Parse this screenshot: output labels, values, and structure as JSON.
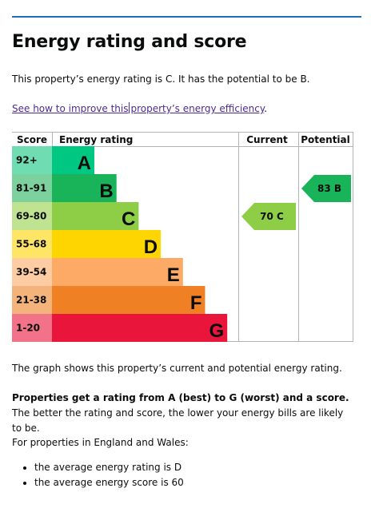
{
  "page": {
    "title": "Energy rating and score",
    "summary": "This property’s energy rating is C. It has the potential to be B.",
    "link_before": "See how to improve this",
    "link_after": "property’s energy efficiency",
    "link_end": ".",
    "graph_caption": "The graph shows this property’s current and potential energy rating.",
    "scale_bold": "Properties get a rating from A (best) to G (worst) and a score.",
    "scale_rest": " The better the rating and score, the lower your energy bills are likely to be.",
    "region_intro": "For properties in England and Wales:",
    "bullets": [
      "the average energy rating is D",
      "the average energy score is 60"
    ]
  },
  "chart_data": {
    "type": "bar",
    "headers": {
      "score": "Score",
      "rating": "Energy rating",
      "current": "Current",
      "potential": "Potential"
    },
    "bands": [
      {
        "letter": "A",
        "score": "92+",
        "color": "#00c781",
        "score_bg": "#6fdcb2"
      },
      {
        "letter": "B",
        "score": "81-91",
        "color": "#19b459",
        "score_bg": "#7dd19f"
      },
      {
        "letter": "C",
        "score": "69-80",
        "color": "#8dce46",
        "score_bg": "#bfe391"
      },
      {
        "letter": "D",
        "score": "55-68",
        "color": "#ffd500",
        "score_bg": "#ffe566"
      },
      {
        "letter": "E",
        "score": "39-54",
        "color": "#fcaa65",
        "score_bg": "#fdcca3"
      },
      {
        "letter": "F",
        "score": "21-38",
        "color": "#ef8023",
        "score_bg": "#f5b37c"
      },
      {
        "letter": "G",
        "score": "1-20",
        "color": "#e9153b",
        "score_bg": "#f27389"
      }
    ],
    "current": {
      "value": 70,
      "letter": "C",
      "label": "70  C",
      "color": "#8dce46",
      "text_color": "#0b0c0c"
    },
    "potential": {
      "value": 83,
      "letter": "B",
      "label": "83  B",
      "color": "#19b459",
      "text_color": "#0b0c0c"
    }
  }
}
